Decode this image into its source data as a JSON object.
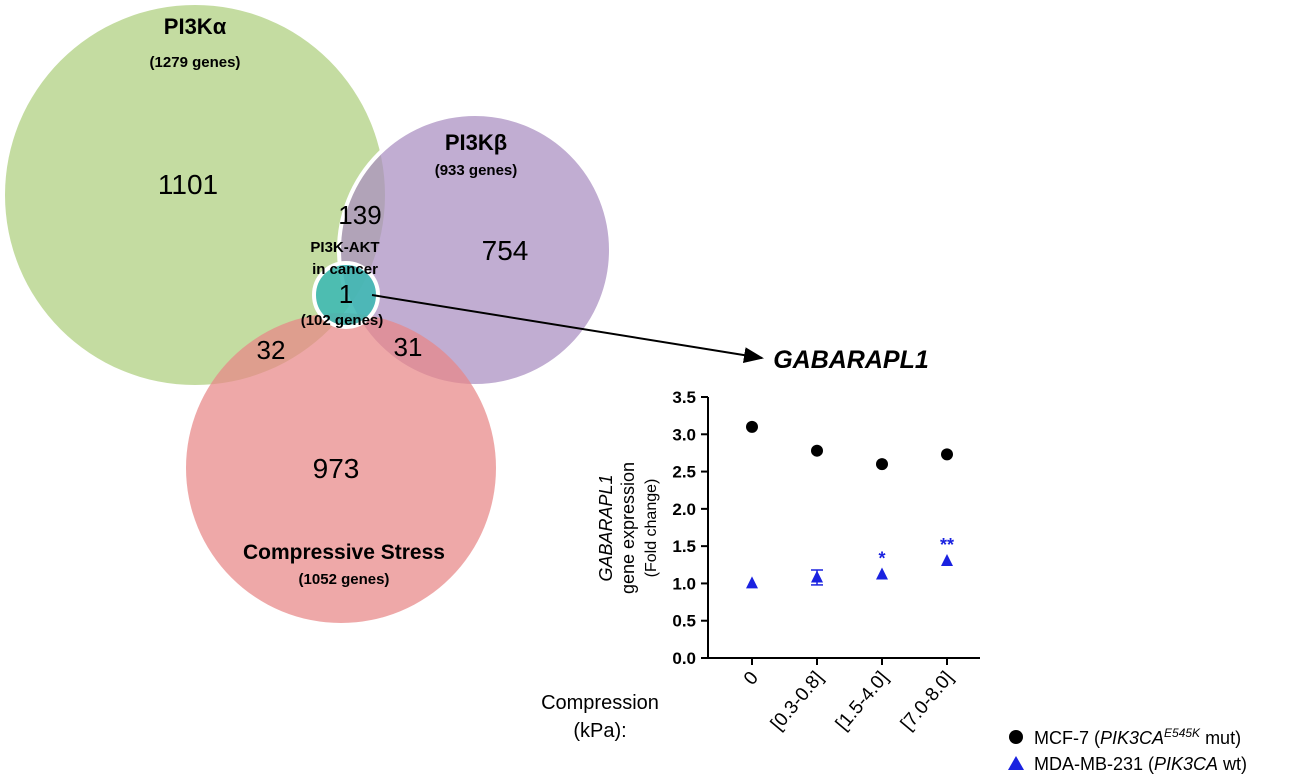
{
  "venn": {
    "sets": [
      {
        "name": "PI3Kα",
        "subtitle": "(1279 genes)",
        "color": "#b5d38a"
      },
      {
        "name": "PI3Kβ",
        "subtitle": "(933 genes)",
        "color": "#a98dc1"
      },
      {
        "name": "Compressive Stress",
        "subtitle": "(1052 genes)",
        "color": "#e78686"
      },
      {
        "name_line1": "PI3K-AKT",
        "name_line2": "in cancer",
        "subtitle": "(102 genes)",
        "color": "#3cb8b3"
      }
    ],
    "regions": {
      "alpha_only": "1101",
      "beta_only": "754",
      "stress_only": "973",
      "alpha_beta": "139",
      "alpha_stress": "32",
      "beta_stress": "31",
      "core": "1"
    },
    "arrow_target": "GABARAPL1"
  },
  "chart_data": {
    "type": "scatter",
    "title": "GABARAPL1",
    "ylabel_line1": "GABARAPL1",
    "ylabel_line2": "gene expression",
    "ylabel_line3": "(Fold change)",
    "xlabel_line1": "Compression",
    "xlabel_line2": "(kPa):",
    "categories": [
      "0",
      "[0.3-0.8]",
      "[1.5-4.0]",
      "[7.0-8.0]"
    ],
    "ylim": [
      0,
      3.5
    ],
    "yticks": [
      "0.0",
      "0.5",
      "1.0",
      "1.5",
      "2.0",
      "2.5",
      "3.0",
      "3.5"
    ],
    "grid": false,
    "legend_position": "bottom-right",
    "series": [
      {
        "name_prefix": "MCF-7 (",
        "name_gene": "PIK3CA",
        "name_sup": "E545K",
        "name_suffix": " mut)",
        "marker": "circle",
        "color": "#000000",
        "values": [
          3.1,
          2.78,
          2.6,
          2.73
        ],
        "errors": [
          0.03,
          0.03,
          0.03,
          0.03
        ],
        "annotations": [
          "",
          "",
          "",
          ""
        ]
      },
      {
        "name_prefix": "MDA-MB-231 (",
        "name_gene": "PIK3CA",
        "name_sup": "",
        "name_suffix": " wt)",
        "marker": "triangle",
        "color": "#1a22e0",
        "values": [
          1.0,
          1.08,
          1.12,
          1.3
        ],
        "errors": [
          0.02,
          0.1,
          0.04,
          0.03
        ],
        "annotations": [
          "",
          "",
          "*",
          "**"
        ]
      }
    ]
  }
}
